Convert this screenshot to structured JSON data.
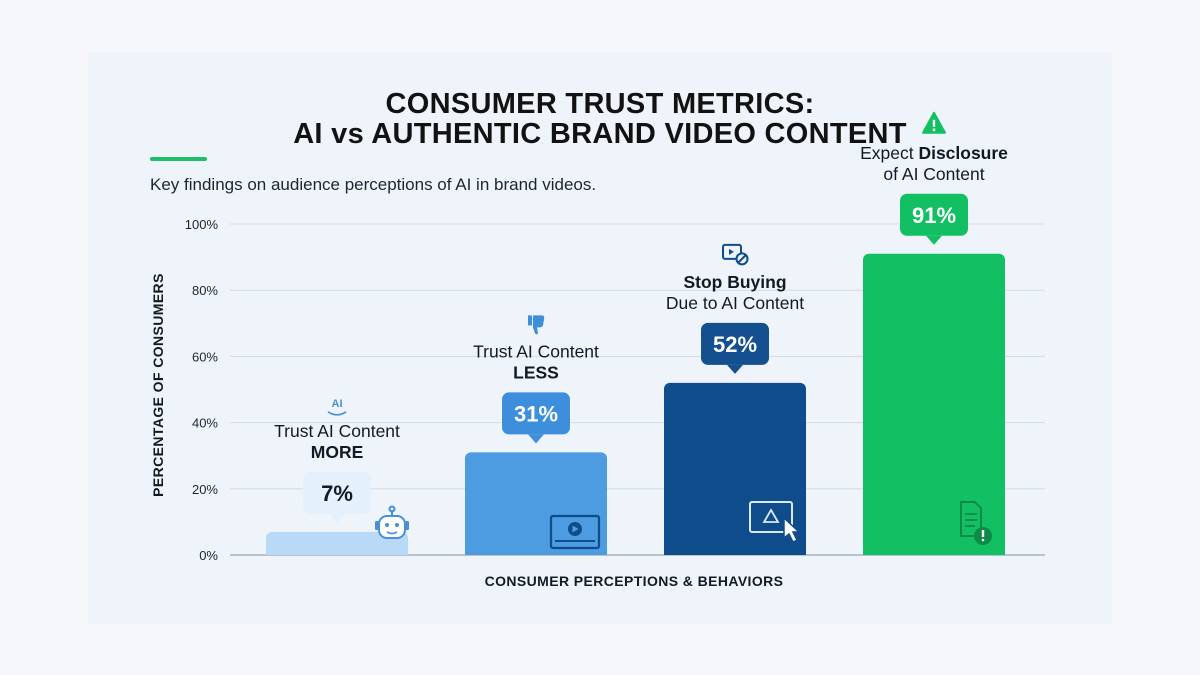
{
  "title_line1": "CONSUMER TRUST METRICS:",
  "title_line2": "AI vs AUTHENTIC BRAND VIDEO CONTENT",
  "subtitle": "Key findings on audience perceptions of AI in brand videos.",
  "colors": {
    "accent": "#1fbf6a",
    "bar1": "#b8daf6",
    "bar2": "#4d9be0",
    "bar3": "#0f4c8c",
    "bar4": "#12c063"
  },
  "chart_data": {
    "type": "bar",
    "title": "CONSUMER TRUST METRICS: AI vs AUTHENTIC BRAND VIDEO CONTENT",
    "subtitle": "Key findings on audience perceptions of AI in brand videos.",
    "xlabel": "CONSUMER PERCEPTIONS & BEHAVIORS",
    "ylabel": "PERCENTAGE OF CONSUMERS",
    "ylim": [
      0,
      100
    ],
    "yticks": [
      "0%",
      "20%",
      "40%",
      "60%",
      "80%",
      "100%"
    ],
    "grid": true,
    "categories": [
      {
        "line1": "Trust AI Content",
        "line2": "MORE",
        "line1_bold_part": "",
        "line2_bold": true,
        "value": 7,
        "label": "7%",
        "icon": "robot-icon",
        "top_icon": "ai-hand-icon"
      },
      {
        "line1": "Trust AI Content",
        "line2": "LESS",
        "line1_bold_part": "",
        "line2_bold": true,
        "value": 31,
        "label": "31%",
        "icon": "video-player-icon",
        "top_icon": "thumbs-down-icon"
      },
      {
        "line1": "Stop Buying",
        "line2": "Due to AI Content",
        "line1_bold": true,
        "line2_bold": false,
        "value": 52,
        "label": "52%",
        "icon": "warning-cursor-icon",
        "top_icon": "video-blocked-icon"
      },
      {
        "line1_prefix": "Expect ",
        "line1_bold_part": "Disclosure",
        "line2": "of AI Content",
        "line2_bold": false,
        "value": 91,
        "label": "91%",
        "icon": "document-alert-icon",
        "top_icon": "warning-icon"
      }
    ]
  }
}
